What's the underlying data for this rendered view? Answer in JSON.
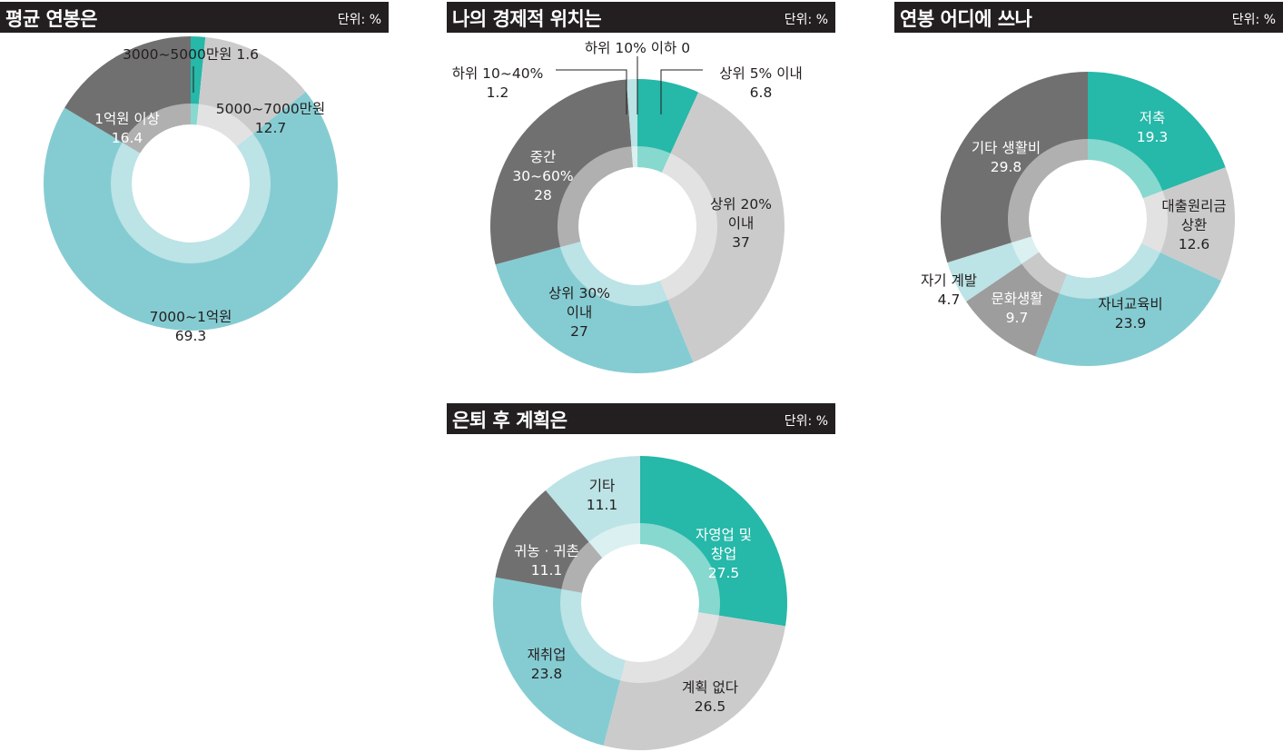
{
  "chart_data": [
    {
      "type": "pie",
      "title": "평균 연봉은",
      "unit": "단위: %",
      "slices": [
        {
          "label": "3000~5000만원",
          "value": 1.6,
          "value_text": "1.6",
          "color": "#26b8a8"
        },
        {
          "label": "5000~7000만원",
          "value": 12.7,
          "value_text": "12.7",
          "color": "#cbcbcc"
        },
        {
          "label": "7000~1억원",
          "value": 69.3,
          "value_text": "69.3",
          "color": "#85ccd2"
        },
        {
          "label": "1억원 이상",
          "value": 16.4,
          "value_text": "16.4",
          "color": "#717071"
        }
      ]
    },
    {
      "type": "pie",
      "title": "나의 경제적 위치는",
      "unit": "단위: %",
      "slices": [
        {
          "label": "하위 10% 이하",
          "value": 0,
          "value_text": "0",
          "color": "#cbcbcc"
        },
        {
          "label": "상위 5% 이내",
          "value": 6.8,
          "value_text": "6.8",
          "color": "#26b8a8"
        },
        {
          "label": "상위 20% 이내",
          "value": 37,
          "value_text": "37",
          "color": "#cbcbcc"
        },
        {
          "label": "상위 30% 이내",
          "value": 27,
          "value_text": "27",
          "color": "#85ccd2"
        },
        {
          "label": "중간 30~60%",
          "value": 28,
          "value_text": "28",
          "color": "#717071"
        },
        {
          "label": "하위 10~40%",
          "value": 1.2,
          "value_text": "1.2",
          "color": "#bce3e5"
        }
      ]
    },
    {
      "type": "pie",
      "title": "연봉 어디에 쓰나",
      "unit": "단위: %",
      "slices": [
        {
          "label": "저축",
          "value": 19.3,
          "value_text": "19.3",
          "color": "#26b8a8"
        },
        {
          "label": "대출원리금 상환",
          "value": 12.6,
          "value_text": "12.6",
          "color": "#cbcbcc"
        },
        {
          "label": "자녀교육비",
          "value": 23.9,
          "value_text": "23.9",
          "color": "#85ccd2"
        },
        {
          "label": "문화생활",
          "value": 9.7,
          "value_text": "9.7",
          "color": "#9d9d9e"
        },
        {
          "label": "자기 계발",
          "value": 4.7,
          "value_text": "4.7",
          "color": "#bce3e5"
        },
        {
          "label": "기타 생활비",
          "value": 29.8,
          "value_text": "29.8",
          "color": "#717071"
        }
      ]
    },
    {
      "type": "pie",
      "title": "은퇴 후 계획은",
      "unit": "단위: %",
      "slices": [
        {
          "label": "자영업 및 창업",
          "value": 27.5,
          "value_text": "27.5",
          "color": "#26b8a8"
        },
        {
          "label": "계획 없다",
          "value": 26.5,
          "value_text": "26.5",
          "color": "#cbcbcc"
        },
        {
          "label": "재취업",
          "value": 23.8,
          "value_text": "23.8",
          "color": "#85ccd2"
        },
        {
          "label": "귀농 · 귀촌",
          "value": 11.1,
          "value_text": "11.1",
          "color": "#717071"
        },
        {
          "label": "기타",
          "value": 11.1,
          "value_text": "11.1",
          "color": "#bce3e5"
        }
      ]
    }
  ]
}
